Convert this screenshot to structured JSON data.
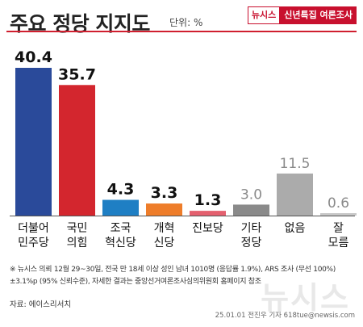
{
  "header": {
    "title": "주요 정당 지지도",
    "unit": "단위: %",
    "badge_brand": "뉴시스",
    "badge_label": "신년특집 여론조사"
  },
  "chart_data": {
    "type": "bar",
    "categories": [
      [
        "더불어",
        "민주당"
      ],
      [
        "국민",
        "의힘"
      ],
      [
        "조국",
        "혁신당"
      ],
      [
        "개혁",
        "신당"
      ],
      [
        "진보당"
      ],
      [
        "기타",
        "정당"
      ],
      [
        "없음"
      ],
      [
        "잘",
        "모름"
      ]
    ],
    "values": [
      40.4,
      35.7,
      4.3,
      3.3,
      1.3,
      3.0,
      11.5,
      0.6
    ],
    "value_labels": [
      "40.4",
      "35.7",
      "4.3",
      "3.3",
      "1.3",
      "3.0",
      "11.5",
      "0.6"
    ],
    "colors": [
      "#2a4a9a",
      "#d3262e",
      "#1f7fc4",
      "#ee7d2a",
      "#e4606f",
      "#8a8a8a",
      "#ababab",
      "#c7c7c7"
    ],
    "label_colors": [
      "#111111",
      "#111111",
      "#111111",
      "#111111",
      "#111111",
      "#8a8a8a",
      "#8a8a8a",
      "#8a8a8a"
    ],
    "ylim": [
      0,
      40.4
    ],
    "grid": false,
    "legend": "none"
  },
  "footer": {
    "note_line1": "※ 뉴시스 의뢰 12월 29~30일, 전국 만 18세 이상 성인 남녀 1010명 (응답률 1.9%), ARS 조사 (무선 100%)",
    "note_line2": "±3.1%p (95% 신뢰수준), 자세한 결과는 중앙선거여론조사심의위원회 홈페이지 참조",
    "source": "자료: 에이스리서치",
    "credit": "25.01.01 전진우 기자 618tue@newsis.com",
    "watermark": "뉴시스"
  }
}
